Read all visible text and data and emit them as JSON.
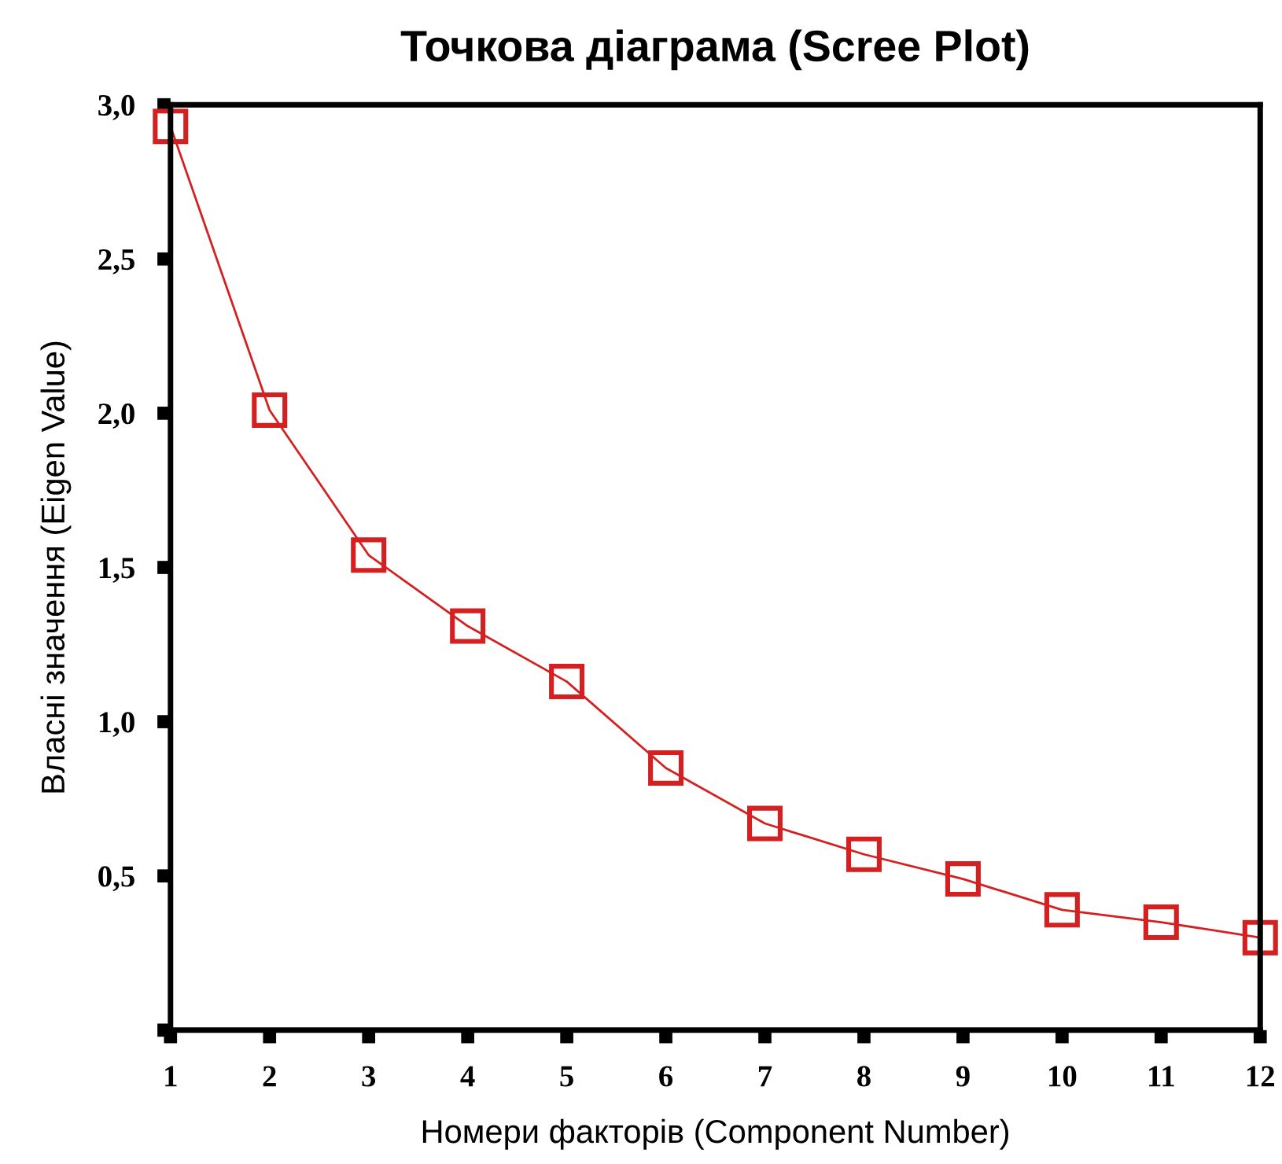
{
  "chart_data": {
    "type": "line",
    "title": "Точкова діаграма (Scree Plot)",
    "xlabel": "Номери факторів (Component Number)",
    "ylabel": "Власні значення (Eigen Value)",
    "x": [
      1,
      2,
      3,
      4,
      5,
      6,
      7,
      8,
      9,
      10,
      11,
      12
    ],
    "series": [
      {
        "color": "#d42020",
        "values": [
          2.93,
          2.01,
          1.54,
          1.31,
          1.13,
          0.85,
          0.67,
          0.57,
          0.49,
          0.39,
          0.35,
          0.3
        ]
      }
    ],
    "xlim": [
      1,
      12
    ],
    "xticks": [
      1,
      2,
      3,
      4,
      5,
      6,
      7,
      8,
      9,
      10,
      11,
      12
    ],
    "ylim": [
      0,
      3.0
    ],
    "yticks": [
      {
        "value": 0,
        "label": null
      },
      {
        "value": 0.5,
        "label": "0,5"
      },
      {
        "value": 1.0,
        "label": "1,0"
      },
      {
        "value": 1.5,
        "label": "1,5"
      },
      {
        "value": 2.0,
        "label": "2,0"
      },
      {
        "value": 2.5,
        "label": "2,5"
      },
      {
        "value": 3.0,
        "label": "3,0"
      }
    ],
    "marker": "square",
    "line_style": "solid",
    "grid": false,
    "legend": false
  }
}
